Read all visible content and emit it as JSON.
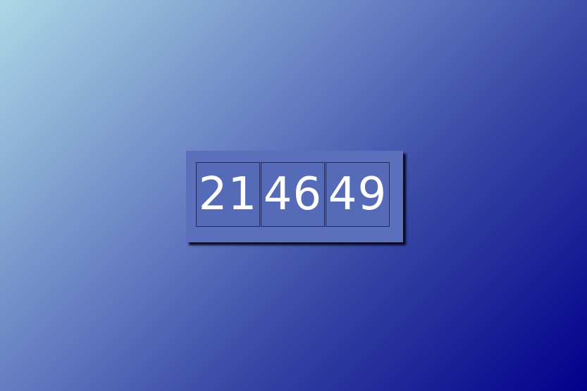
{
  "counter": {
    "groups": [
      "21",
      "46",
      "49"
    ]
  },
  "colors": {
    "background_start": "#add8e6",
    "background_end": "#00008b",
    "panel": "#5b6fbb",
    "digit_text": "#ffffff",
    "cell_border": "#1f2a66"
  }
}
